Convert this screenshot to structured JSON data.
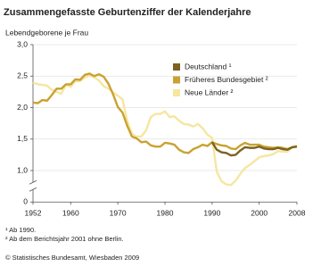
{
  "chart_data": {
    "type": "line",
    "title": "Zusammengefasste Geburtenziffer der Kalenderjahre",
    "y_label": "Lebendgeborene je Frau",
    "x": [
      1952,
      1953,
      1954,
      1955,
      1956,
      1957,
      1958,
      1959,
      1960,
      1961,
      1962,
      1963,
      1964,
      1965,
      1966,
      1967,
      1968,
      1969,
      1970,
      1971,
      1972,
      1973,
      1974,
      1975,
      1976,
      1977,
      1978,
      1979,
      1980,
      1981,
      1982,
      1983,
      1984,
      1985,
      1986,
      1987,
      1988,
      1989,
      1990,
      1991,
      1992,
      1993,
      1994,
      1995,
      1996,
      1997,
      1998,
      1999,
      2000,
      2001,
      2002,
      2003,
      2004,
      2005,
      2006,
      2007,
      2008
    ],
    "series": [
      {
        "name": "Neue Länder ²",
        "color": "#f6e6a0",
        "values": [
          2.4,
          2.37,
          2.36,
          2.35,
          2.28,
          2.25,
          2.22,
          2.36,
          2.33,
          2.42,
          2.42,
          2.48,
          2.51,
          2.48,
          2.43,
          2.34,
          2.3,
          2.24,
          2.19,
          2.13,
          1.79,
          1.58,
          1.54,
          1.54,
          1.64,
          1.85,
          1.9,
          1.9,
          1.94,
          1.85,
          1.86,
          1.79,
          1.74,
          1.73,
          1.7,
          1.74,
          1.67,
          1.57,
          1.52,
          0.98,
          0.83,
          0.78,
          0.77,
          0.84,
          0.95,
          1.04,
          1.09,
          1.15,
          1.21,
          1.23,
          1.24,
          1.26,
          1.31,
          1.3,
          1.3,
          1.37,
          1.4
        ]
      },
      {
        "name": "Früheres Bundesgebiet ²",
        "color": "#c9a232",
        "values": [
          2.08,
          2.07,
          2.12,
          2.11,
          2.2,
          2.3,
          2.3,
          2.37,
          2.37,
          2.45,
          2.44,
          2.52,
          2.54,
          2.5,
          2.53,
          2.49,
          2.38,
          2.21,
          2.01,
          1.92,
          1.71,
          1.54,
          1.51,
          1.45,
          1.46,
          1.4,
          1.38,
          1.38,
          1.44,
          1.43,
          1.41,
          1.33,
          1.29,
          1.28,
          1.34,
          1.37,
          1.41,
          1.39,
          1.45,
          1.42,
          1.4,
          1.39,
          1.35,
          1.34,
          1.4,
          1.44,
          1.41,
          1.41,
          1.41,
          1.38,
          1.37,
          1.36,
          1.37,
          1.36,
          1.34,
          1.37,
          1.38
        ]
      },
      {
        "name": "Deutschland ¹",
        "color": "#7b6320",
        "values": [
          null,
          null,
          null,
          null,
          null,
          null,
          null,
          null,
          null,
          null,
          null,
          null,
          null,
          null,
          null,
          null,
          null,
          null,
          null,
          null,
          null,
          null,
          null,
          null,
          null,
          null,
          null,
          null,
          null,
          null,
          null,
          null,
          null,
          null,
          null,
          null,
          null,
          null,
          1.45,
          1.33,
          1.29,
          1.28,
          1.24,
          1.25,
          1.32,
          1.37,
          1.36,
          1.36,
          1.38,
          1.35,
          1.34,
          1.34,
          1.36,
          1.34,
          1.33,
          1.37,
          1.38
        ]
      }
    ],
    "xlim": [
      1952,
      2008
    ],
    "xticks": [
      1952,
      1960,
      1970,
      1980,
      1990,
      2000,
      2008
    ],
    "ylim": [
      0,
      3.0
    ],
    "yticks": [
      0,
      {
        "value": 1.0,
        "label": "1,0"
      },
      {
        "value": 1.5,
        "label": "1,5"
      },
      {
        "value": 2.0,
        "label": "2,0"
      },
      {
        "value": 2.5,
        "label": "2,5"
      },
      {
        "value": 3.0,
        "label": "3,0"
      }
    ],
    "y_axis_break": true,
    "grid": true,
    "legend": "top-right",
    "footnotes": [
      "¹ Ab 1990.",
      "² Ab dem Berichtsjahr 2001 ohne Berlin."
    ],
    "source": "© Statistisches Bundesamt, Wiesbaden 2009"
  }
}
